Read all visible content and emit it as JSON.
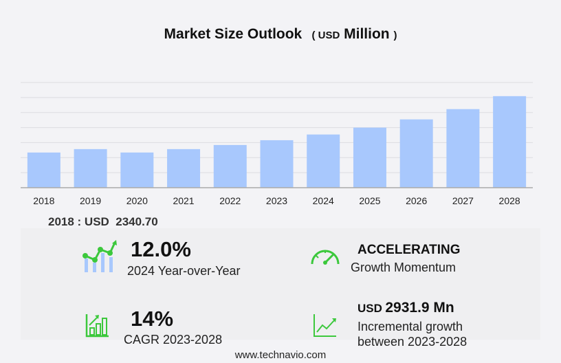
{
  "title": "Market Size Outlook",
  "unit_open": "(",
  "unit_currency": "USD",
  "unit_scale": "Million",
  "unit_close": ")",
  "chart_data": {
    "type": "bar",
    "categories": [
      "2018",
      "2019",
      "2020",
      "2021",
      "2022",
      "2023",
      "2024",
      "2025",
      "2026",
      "2027",
      "2028"
    ],
    "values": [
      2340.7,
      2568,
      2341,
      2568,
      2841,
      3160,
      3539,
      3999,
      4546,
      5230,
      6092
    ],
    "ylim": [
      0,
      7000
    ],
    "grid": true,
    "bar_color": "#a8c8fd"
  },
  "base_year_label": "2018 : USD  2340.70",
  "stats": {
    "yoy_value": "12.0%",
    "yoy_label": "2024 Year-over-Year",
    "momentum_value": "ACCELERATING",
    "momentum_label": "Growth Momentum",
    "cagr_value": "14%",
    "cagr_label": "CAGR 2023-2028",
    "incr_currency": "USD",
    "incr_value": "2931.9 Mn",
    "incr_label1": "Incremental growth",
    "incr_label2": "between 2023-2028"
  },
  "colors": {
    "accent_green": "#3cc83c",
    "bar": "#a8c8fd"
  },
  "footer": "www.technavio.com"
}
